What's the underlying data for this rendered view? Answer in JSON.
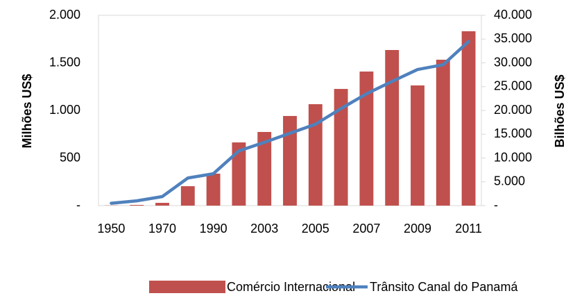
{
  "chart_data": {
    "type": "bar-line",
    "categories": [
      "1950",
      null,
      "1970",
      null,
      "1990",
      null,
      "2003",
      null,
      "2005",
      null,
      "2007",
      null,
      "2009",
      null,
      "2011"
    ],
    "ylabel": "Milhões US$",
    "y2label": "Bilhões US$",
    "ylim": [
      0,
      2000
    ],
    "yticks": [
      {
        "value": 0,
        "label": "-"
      },
      500,
      {
        "value": 1000,
        "label": "1.000"
      },
      {
        "value": 1500,
        "label": "1.500"
      },
      {
        "value": 2000,
        "label": "2.000"
      }
    ],
    "y2lim": [
      0,
      40000
    ],
    "y2ticks": [
      {
        "value": 0,
        "label": "-"
      },
      {
        "value": 5000,
        "label": "5.000"
      },
      {
        "value": 10000,
        "label": "10.000"
      },
      {
        "value": 15000,
        "label": "15.000"
      },
      {
        "value": 20000,
        "label": "20.000"
      },
      {
        "value": 25000,
        "label": "25.000"
      },
      {
        "value": 30000,
        "label": "30.000"
      },
      {
        "value": 35000,
        "label": "35.000"
      },
      {
        "value": 40000,
        "label": "40.000"
      }
    ],
    "series": [
      {
        "name": "Comércio Internacional",
        "color": "#c0504d",
        "type": "bar",
        "values": [
          2,
          7,
          29,
          204,
          336,
          664,
          774,
          942,
          1066,
          1226,
          1409,
          1635,
          1263,
          1533,
          1832
        ]
      },
      {
        "name": "Trânsito Canal do Panamá",
        "color": "#4f81bd",
        "type": "line",
        "axis": "y2",
        "values": [
          500,
          1000,
          1900,
          5800,
          6700,
          11500,
          13300,
          15200,
          17100,
          20400,
          23500,
          26100,
          28600,
          29600,
          34500
        ]
      }
    ]
  }
}
